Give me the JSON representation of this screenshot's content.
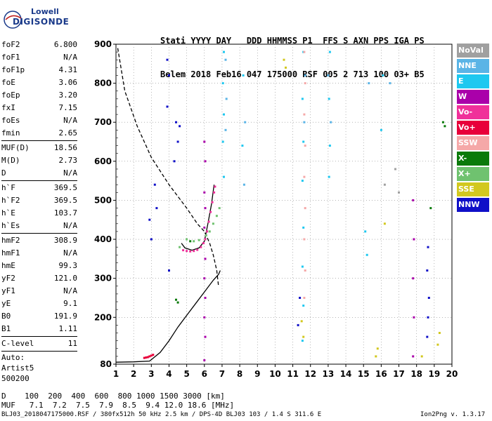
{
  "logo": {
    "line1": "Lowell",
    "line2": "DIGISONDE"
  },
  "header": {
    "row1": "Stati YYYY DAY   DDD HHMMSS P1  FFS S AXN PPS IGA PS",
    "row2": "Belem 2018 Feb16 047 175000 RSF 005 2 713 100 03+ B5"
  },
  "params": [
    {
      "name": "foF2",
      "value": "6.800"
    },
    {
      "name": "foF1",
      "value": "N/A"
    },
    {
      "name": "foF1p",
      "value": "4.31"
    },
    {
      "name": "foE",
      "value": "3.06"
    },
    {
      "name": "foEp",
      "value": "3.20"
    },
    {
      "name": "fxI",
      "value": "7.15"
    },
    {
      "name": "foEs",
      "value": "N/A"
    },
    {
      "name": "fmin",
      "value": "2.65"
    },
    {
      "name": "MUF(D)",
      "value": "18.56"
    },
    {
      "name": "M(D)",
      "value": "2.73"
    },
    {
      "name": "D",
      "value": "N/A"
    },
    {
      "name": "h`F",
      "value": "369.5"
    },
    {
      "name": "h`F2",
      "value": "369.5"
    },
    {
      "name": "h`E",
      "value": "103.7"
    },
    {
      "name": "h`Es",
      "value": "N/A"
    },
    {
      "name": "hmF2",
      "value": "308.9"
    },
    {
      "name": "hmF1",
      "value": "N/A"
    },
    {
      "name": "hmE",
      "value": "99.3"
    },
    {
      "name": "yF2",
      "value": "121.0"
    },
    {
      "name": "yF1",
      "value": "N/A"
    },
    {
      "name": "yE",
      "value": "9.1"
    },
    {
      "name": "B0",
      "value": "191.9"
    },
    {
      "name": "B1",
      "value": "1.11"
    },
    {
      "name": "C-level",
      "value": "11"
    }
  ],
  "auto": {
    "l1": "Auto:",
    "l2": "Artist5",
    "l3": "500200"
  },
  "legend": [
    {
      "label": "NoVal",
      "color": "#a0a0a0"
    },
    {
      "label": "NNE",
      "color": "#5ab4e6"
    },
    {
      "label": "E",
      "color": "#1ec8f0"
    },
    {
      "label": "W",
      "color": "#aa00aa"
    },
    {
      "label": "Vo-",
      "color": "#f0309a"
    },
    {
      "label": "Vo+",
      "color": "#e8003a"
    },
    {
      "label": "SSW",
      "color": "#f5a8a8"
    },
    {
      "label": "X-",
      "color": "#0a7a0a"
    },
    {
      "label": "X+",
      "color": "#6fc26f"
    },
    {
      "label": "SSE",
      "color": "#d2c81e"
    },
    {
      "label": "NNW",
      "color": "#1010c8"
    }
  ],
  "bottom": {
    "row1": "D    100  200  400  600  800 1000 1500 3000 [km]",
    "row2": "MUF   7.1  7.2  7.5  7.9  8.5  9.4 12.0 18.6 [MHz]"
  },
  "footer": {
    "left": "BLJ03_2018047175000.RSF / 380fx512h 50 kHz 2.5 km / DPS-4D BLJ03 103 / 1.4 S 311.6 E",
    "right": "Ion2Png v. 1.3.17"
  },
  "chart_data": {
    "type": "scatter",
    "xlim": [
      1,
      20
    ],
    "ylim": [
      80,
      900
    ],
    "xticks": [
      1,
      2,
      3,
      4,
      5,
      6,
      7,
      8,
      9,
      10,
      11,
      12,
      13,
      14,
      15,
      16,
      17,
      18,
      19,
      20
    ],
    "yticks": [
      80,
      200,
      300,
      400,
      500,
      600,
      700,
      800,
      900
    ],
    "xlabel": "",
    "ylabel": "",
    "grid": true,
    "curves": [
      {
        "style": "dashed",
        "color": "#000000",
        "points": [
          [
            1.1,
            890
          ],
          [
            1.5,
            780
          ],
          [
            2.2,
            690
          ],
          [
            3.0,
            610
          ],
          [
            4.0,
            540
          ],
          [
            5.0,
            480
          ],
          [
            5.6,
            440
          ],
          [
            6.0,
            420
          ],
          [
            6.3,
            390
          ],
          [
            6.5,
            360
          ],
          [
            6.7,
            320
          ],
          [
            6.8,
            280
          ]
        ]
      },
      {
        "style": "solid",
        "color": "#000000",
        "points": [
          [
            1.0,
            85
          ],
          [
            2.0,
            86
          ],
          [
            2.9,
            88
          ],
          [
            3.5,
            110
          ],
          [
            4.0,
            140
          ],
          [
            4.5,
            175
          ],
          [
            5.0,
            205
          ],
          [
            5.5,
            235
          ],
          [
            6.0,
            265
          ],
          [
            6.5,
            295
          ],
          [
            6.8,
            310
          ],
          [
            6.9,
            320
          ]
        ]
      },
      {
        "style": "solid",
        "color": "#000000",
        "points": [
          [
            4.7,
            390
          ],
          [
            4.9,
            378
          ],
          [
            5.3,
            372
          ],
          [
            5.7,
            378
          ],
          [
            6.0,
            395
          ],
          [
            6.2,
            440
          ],
          [
            6.4,
            490
          ],
          [
            6.55,
            540
          ]
        ]
      }
    ],
    "traces": [
      {
        "name": "Vo-",
        "color": "#f0309a",
        "points": [
          [
            4.8,
            372
          ],
          [
            5.0,
            370
          ],
          [
            5.2,
            369
          ],
          [
            5.4,
            370
          ],
          [
            5.6,
            373
          ],
          [
            5.8,
            380
          ],
          [
            5.95,
            390
          ],
          [
            6.05,
            400
          ],
          [
            6.15,
            420
          ],
          [
            6.25,
            445
          ],
          [
            6.35,
            470
          ],
          [
            6.45,
            495
          ],
          [
            6.55,
            520
          ],
          [
            6.6,
            535
          ]
        ]
      },
      {
        "name": "X+",
        "color": "#6fc26f",
        "points": [
          [
            4.6,
            380
          ],
          [
            5.0,
            400
          ],
          [
            5.4,
            395
          ],
          [
            5.7,
            398
          ],
          [
            6.1,
            410
          ],
          [
            6.3,
            420
          ],
          [
            6.5,
            440
          ],
          [
            6.7,
            460
          ],
          [
            6.85,
            480
          ]
        ]
      },
      {
        "name": "Vo+",
        "color": "#e8003a",
        "points": [
          [
            2.6,
            96
          ],
          [
            2.7,
            97
          ],
          [
            2.8,
            98
          ],
          [
            2.9,
            100
          ],
          [
            3.0,
            102
          ],
          [
            3.1,
            104
          ]
        ]
      },
      {
        "name": "W",
        "color": "#aa00aa",
        "points": [
          [
            6.0,
            90
          ],
          [
            6.05,
            150
          ],
          [
            6.0,
            200
          ],
          [
            6.05,
            250
          ],
          [
            6.0,
            300
          ],
          [
            6.05,
            350
          ],
          [
            6.0,
            430
          ],
          [
            6.05,
            480
          ],
          [
            6.0,
            520
          ],
          [
            6.05,
            600
          ],
          [
            6.0,
            650
          ],
          [
            17.8,
            100
          ],
          [
            17.85,
            200
          ],
          [
            17.8,
            300
          ],
          [
            17.85,
            400
          ],
          [
            17.8,
            500
          ]
        ]
      },
      {
        "name": "NNW",
        "color": "#1010c8",
        "points": [
          [
            3.9,
            860
          ],
          [
            4.0,
            820
          ],
          [
            3.9,
            740
          ],
          [
            4.4,
            700
          ],
          [
            4.5,
            650
          ],
          [
            4.6,
            690
          ],
          [
            4.3,
            600
          ],
          [
            3.2,
            540
          ],
          [
            3.3,
            480
          ],
          [
            2.9,
            450
          ],
          [
            3.0,
            400
          ],
          [
            4.0,
            320
          ],
          [
            11.4,
            250
          ],
          [
            11.3,
            180
          ],
          [
            18.6,
            150
          ],
          [
            18.65,
            200
          ],
          [
            18.7,
            250
          ],
          [
            18.6,
            320
          ],
          [
            18.65,
            380
          ]
        ]
      },
      {
        "name": "E",
        "color": "#1ec8f0",
        "points": [
          [
            7.1,
            880
          ],
          [
            7.05,
            800
          ],
          [
            7.1,
            720
          ],
          [
            7.05,
            650
          ],
          [
            7.1,
            560
          ],
          [
            8.2,
            820
          ],
          [
            8.15,
            640
          ],
          [
            11.6,
            880
          ],
          [
            11.55,
            760
          ],
          [
            11.6,
            650
          ],
          [
            11.55,
            550
          ],
          [
            11.6,
            430
          ],
          [
            11.55,
            330
          ],
          [
            11.6,
            230
          ],
          [
            11.55,
            140
          ],
          [
            13.1,
            880
          ],
          [
            13.05,
            760
          ],
          [
            13.1,
            640
          ],
          [
            13.05,
            560
          ],
          [
            16.1,
            820
          ],
          [
            16.0,
            680
          ],
          [
            15.1,
            420
          ],
          [
            15.2,
            360
          ]
        ]
      },
      {
        "name": "NNE",
        "color": "#5ab4e6",
        "points": [
          [
            7.2,
            860
          ],
          [
            7.25,
            760
          ],
          [
            7.2,
            680
          ],
          [
            8.3,
            700
          ],
          [
            8.25,
            540
          ],
          [
            11.7,
            820
          ],
          [
            11.65,
            700
          ],
          [
            13.0,
            820
          ],
          [
            13.15,
            700
          ],
          [
            15.3,
            800
          ],
          [
            16.5,
            800
          ]
        ]
      },
      {
        "name": "SSW",
        "color": "#f5a8a8",
        "points": [
          [
            11.65,
            880
          ],
          [
            11.7,
            800
          ],
          [
            11.65,
            720
          ],
          [
            11.7,
            640
          ],
          [
            11.65,
            560
          ],
          [
            11.7,
            480
          ],
          [
            11.65,
            400
          ],
          [
            11.7,
            320
          ],
          [
            11.65,
            250
          ]
        ]
      },
      {
        "name": "SSE",
        "color": "#d2c81e",
        "points": [
          [
            10.5,
            860
          ],
          [
            10.6,
            840
          ],
          [
            11.5,
            190
          ],
          [
            11.6,
            150
          ],
          [
            15.7,
            100
          ],
          [
            15.8,
            120
          ],
          [
            16.2,
            440
          ],
          [
            19.2,
            130
          ],
          [
            19.3,
            160
          ],
          [
            18.3,
            100
          ]
        ]
      },
      {
        "name": "X-",
        "color": "#0a7a0a",
        "points": [
          [
            4.5,
            238
          ],
          [
            4.4,
            245
          ],
          [
            5.2,
            395
          ],
          [
            19.5,
            700
          ],
          [
            19.6,
            690
          ],
          [
            18.8,
            480
          ]
        ]
      },
      {
        "name": "NoVal",
        "color": "#a0a0a0",
        "points": [
          [
            17.0,
            520
          ],
          [
            16.8,
            580
          ],
          [
            16.2,
            540
          ]
        ]
      }
    ]
  }
}
